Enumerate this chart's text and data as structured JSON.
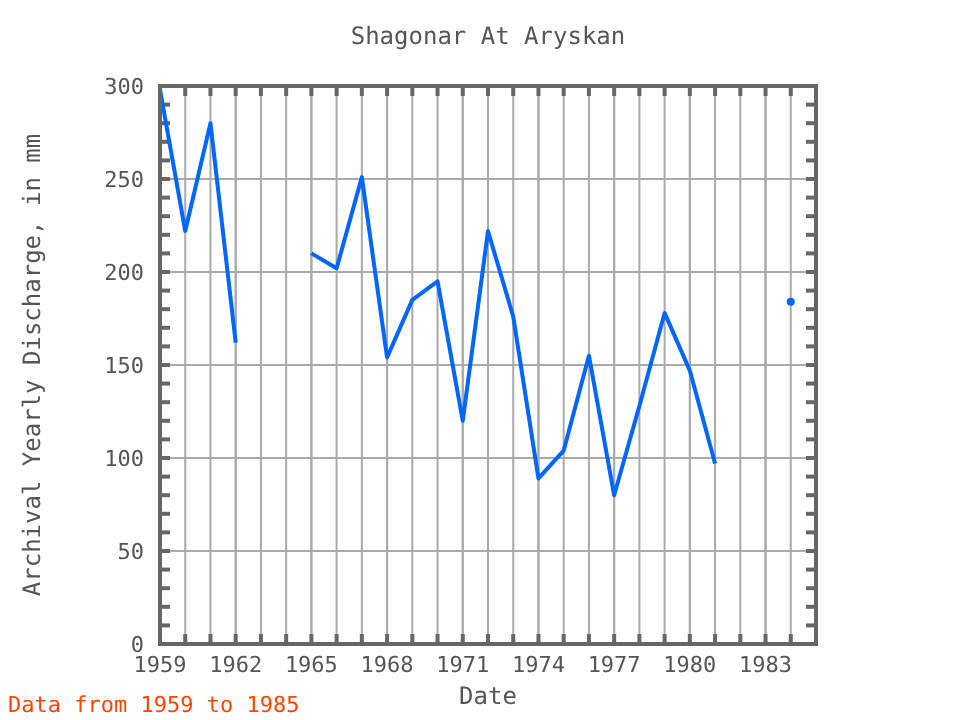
{
  "chart_data": {
    "type": "line",
    "title": "Shagonar At Aryskan",
    "xlabel": "Date",
    "ylabel": "Archival Yearly Discharge, in mm",
    "x": [
      1959,
      1960,
      1961,
      1962,
      1963,
      1964,
      1965,
      1966,
      1967,
      1968,
      1969,
      1970,
      1971,
      1972,
      1973,
      1974,
      1975,
      1976,
      1977,
      1978,
      1979,
      1980,
      1981,
      1982,
      1983,
      1984
    ],
    "series": [
      {
        "color": "#0066ff",
        "values": [
          298,
          222,
          280,
          162,
          null,
          null,
          210,
          202,
          251,
          154,
          185,
          195,
          120,
          222,
          176,
          89,
          104,
          155,
          80,
          128,
          178,
          147,
          97,
          null,
          null,
          184
        ]
      }
    ],
    "xlim": [
      1959,
      1985
    ],
    "xticks": [
      1959,
      1962,
      1965,
      1968,
      1971,
      1974,
      1977,
      1980,
      1983
    ],
    "ylim": [
      0,
      300
    ],
    "yticks": [
      0,
      50,
      100,
      150,
      200,
      250,
      300
    ],
    "grid": true,
    "marker": "none",
    "annotations": [
      "Data from 1959 to 1985"
    ]
  }
}
